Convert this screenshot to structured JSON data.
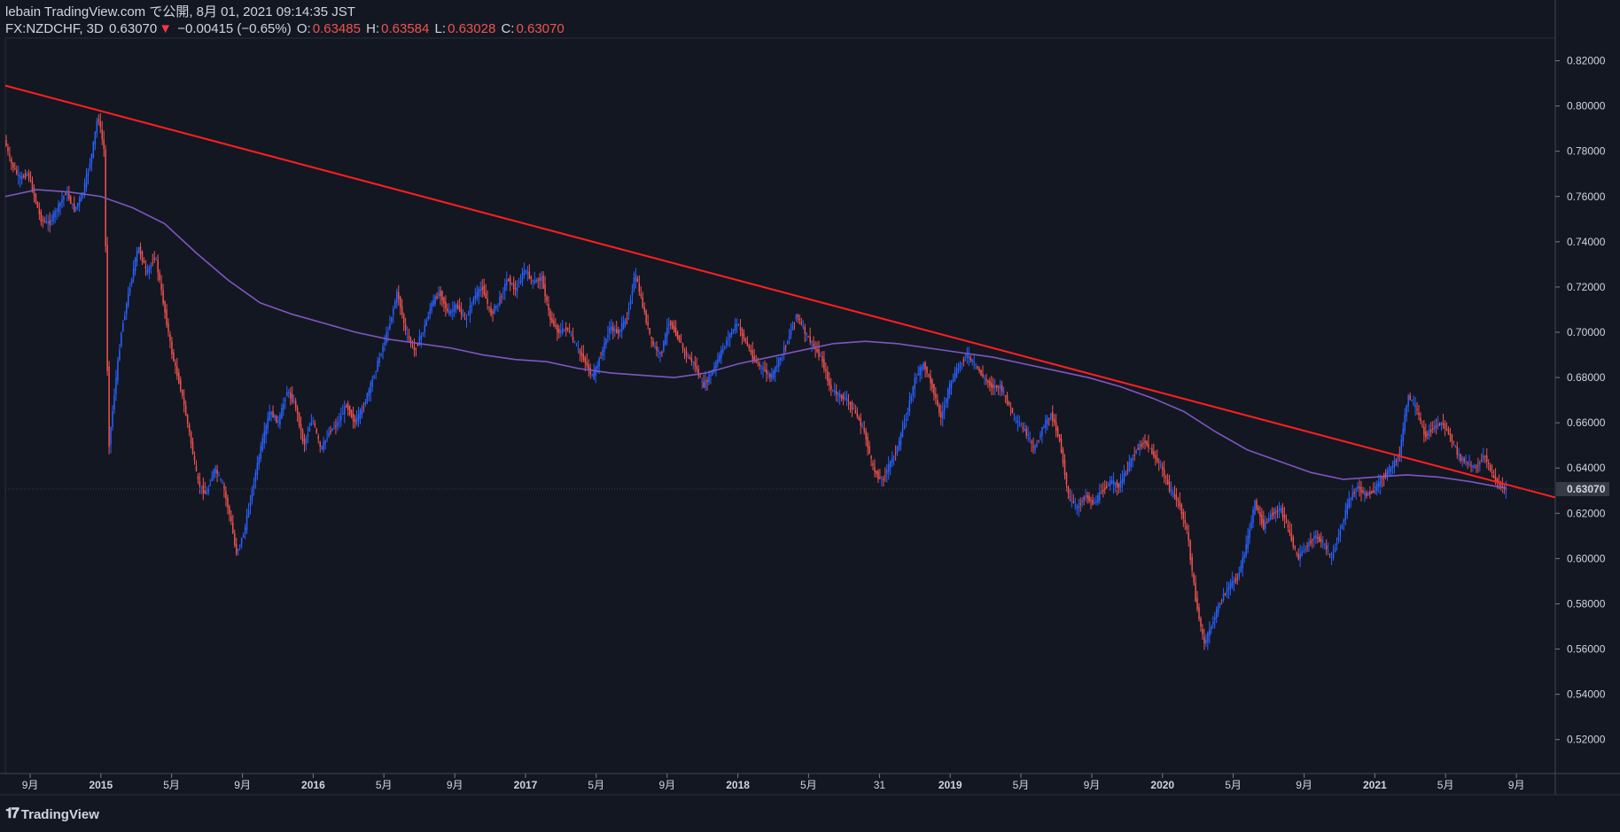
{
  "header": {
    "publisher": "lebain TradingView.com で公開, 8月 01, 2021 09:14:35 JST",
    "symbol": "FX:NZDCHF, 3D",
    "last": "0.63070",
    "change_arrow": "▼",
    "change": "−0.00415 (−0.65%)",
    "o_label": "O:",
    "o_value": "0.63485",
    "h_label": "H:",
    "h_value": "0.63584",
    "l_label": "L:",
    "l_value": "0.63028",
    "c_label": "C:",
    "c_value": "0.63070"
  },
  "logo": {
    "icon": "tradingview-logo-icon",
    "text": "TradingView"
  },
  "colors": {
    "background": "#131722",
    "up": "#2962ff",
    "down": "#ef5350",
    "ma": "#7e57c2",
    "trendline": "#ff1f1f",
    "axis_text": "#d1d4dc",
    "price_label_bg": "#363a45"
  },
  "chart_data": {
    "type": "candlestick",
    "title": "FX:NZDCHF, 3D",
    "y_axis": {
      "min": 0.505,
      "max": 0.83,
      "ticks": [
        "0.82000",
        "0.80000",
        "0.78000",
        "0.76000",
        "0.74000",
        "0.72000",
        "0.70000",
        "0.68000",
        "0.66000",
        "0.64000",
        "0.62000",
        "0.60000",
        "0.58000",
        "0.56000",
        "0.54000",
        "0.52000"
      ],
      "last_price_label": "0.63070",
      "last_price": 0.6307
    },
    "x_axis": {
      "start": 2014.55,
      "end": 2021.85,
      "ticks": [
        {
          "t": 2014.667,
          "label": "9月",
          "bold": false
        },
        {
          "t": 2015.0,
          "label": "2015",
          "bold": true
        },
        {
          "t": 2015.333,
          "label": "5月",
          "bold": false
        },
        {
          "t": 2015.667,
          "label": "9月",
          "bold": false
        },
        {
          "t": 2016.0,
          "label": "2016",
          "bold": true
        },
        {
          "t": 2016.333,
          "label": "5月",
          "bold": false
        },
        {
          "t": 2016.667,
          "label": "9月",
          "bold": false
        },
        {
          "t": 2017.0,
          "label": "2017",
          "bold": true
        },
        {
          "t": 2017.333,
          "label": "5月",
          "bold": false
        },
        {
          "t": 2017.667,
          "label": "9月",
          "bold": false
        },
        {
          "t": 2018.0,
          "label": "2018",
          "bold": true
        },
        {
          "t": 2018.333,
          "label": "5月",
          "bold": false
        },
        {
          "t": 2018.667,
          "label": "31",
          "bold": false
        },
        {
          "t": 2019.0,
          "label": "2019",
          "bold": true
        },
        {
          "t": 2019.333,
          "label": "5月",
          "bold": false
        },
        {
          "t": 2019.667,
          "label": "9月",
          "bold": false
        },
        {
          "t": 2020.0,
          "label": "2020",
          "bold": true
        },
        {
          "t": 2020.333,
          "label": "5月",
          "bold": false
        },
        {
          "t": 2020.667,
          "label": "9月",
          "bold": false
        },
        {
          "t": 2021.0,
          "label": "2021",
          "bold": true
        },
        {
          "t": 2021.333,
          "label": "5月",
          "bold": false
        },
        {
          "t": 2021.667,
          "label": "9月",
          "bold": false
        }
      ]
    },
    "price_path": [
      [
        2014.55,
        0.785
      ],
      [
        2014.58,
        0.775
      ],
      [
        2014.62,
        0.768
      ],
      [
        2014.66,
        0.77
      ],
      [
        2014.68,
        0.764
      ],
      [
        2014.72,
        0.75
      ],
      [
        2014.76,
        0.748
      ],
      [
        2014.8,
        0.755
      ],
      [
        2014.84,
        0.762
      ],
      [
        2014.88,
        0.754
      ],
      [
        2014.92,
        0.762
      ],
      [
        2014.96,
        0.778
      ],
      [
        2014.99,
        0.796
      ],
      [
        2015.02,
        0.78
      ],
      [
        2015.04,
        0.648
      ],
      [
        2015.07,
        0.675
      ],
      [
        2015.1,
        0.7
      ],
      [
        2015.14,
        0.72
      ],
      [
        2015.18,
        0.738
      ],
      [
        2015.22,
        0.726
      ],
      [
        2015.26,
        0.734
      ],
      [
        2015.3,
        0.712
      ],
      [
        2015.34,
        0.69
      ],
      [
        2015.38,
        0.675
      ],
      [
        2015.42,
        0.656
      ],
      [
        2015.46,
        0.634
      ],
      [
        2015.5,
        0.628
      ],
      [
        2015.54,
        0.64
      ],
      [
        2015.58,
        0.632
      ],
      [
        2015.62,
        0.615
      ],
      [
        2015.64,
        0.602
      ],
      [
        2015.68,
        0.612
      ],
      [
        2015.72,
        0.632
      ],
      [
        2015.76,
        0.65
      ],
      [
        2015.8,
        0.665
      ],
      [
        2015.84,
        0.66
      ],
      [
        2015.88,
        0.674
      ],
      [
        2015.92,
        0.668
      ],
      [
        2015.96,
        0.65
      ],
      [
        2016.0,
        0.662
      ],
      [
        2016.04,
        0.648
      ],
      [
        2016.08,
        0.656
      ],
      [
        2016.12,
        0.66
      ],
      [
        2016.16,
        0.668
      ],
      [
        2016.2,
        0.66
      ],
      [
        2016.24,
        0.667
      ],
      [
        2016.28,
        0.678
      ],
      [
        2016.32,
        0.69
      ],
      [
        2016.36,
        0.702
      ],
      [
        2016.4,
        0.718
      ],
      [
        2016.44,
        0.7
      ],
      [
        2016.48,
        0.692
      ],
      [
        2016.52,
        0.7
      ],
      [
        2016.56,
        0.712
      ],
      [
        2016.6,
        0.718
      ],
      [
        2016.64,
        0.708
      ],
      [
        2016.68,
        0.712
      ],
      [
        2016.72,
        0.705
      ],
      [
        2016.76,
        0.715
      ],
      [
        2016.8,
        0.72
      ],
      [
        2016.84,
        0.708
      ],
      [
        2016.88,
        0.714
      ],
      [
        2016.92,
        0.724
      ],
      [
        2016.96,
        0.718
      ],
      [
        2017.0,
        0.728
      ],
      [
        2017.04,
        0.722
      ],
      [
        2017.08,
        0.724
      ],
      [
        2017.12,
        0.706
      ],
      [
        2017.16,
        0.7
      ],
      [
        2017.2,
        0.702
      ],
      [
        2017.24,
        0.694
      ],
      [
        2017.28,
        0.688
      ],
      [
        2017.32,
        0.68
      ],
      [
        2017.36,
        0.69
      ],
      [
        2017.4,
        0.702
      ],
      [
        2017.44,
        0.7
      ],
      [
        2017.48,
        0.706
      ],
      [
        2017.52,
        0.726
      ],
      [
        2017.56,
        0.71
      ],
      [
        2017.6,
        0.695
      ],
      [
        2017.64,
        0.69
      ],
      [
        2017.68,
        0.705
      ],
      [
        2017.72,
        0.698
      ],
      [
        2017.76,
        0.69
      ],
      [
        2017.8,
        0.686
      ],
      [
        2017.84,
        0.676
      ],
      [
        2017.88,
        0.682
      ],
      [
        2017.92,
        0.69
      ],
      [
        2017.96,
        0.698
      ],
      [
        2018.0,
        0.704
      ],
      [
        2018.04,
        0.696
      ],
      [
        2018.08,
        0.688
      ],
      [
        2018.12,
        0.684
      ],
      [
        2018.16,
        0.68
      ],
      [
        2018.2,
        0.688
      ],
      [
        2018.24,
        0.697
      ],
      [
        2018.28,
        0.708
      ],
      [
        2018.32,
        0.7
      ],
      [
        2018.36,
        0.694
      ],
      [
        2018.4,
        0.688
      ],
      [
        2018.44,
        0.675
      ],
      [
        2018.48,
        0.672
      ],
      [
        2018.52,
        0.67
      ],
      [
        2018.56,
        0.664
      ],
      [
        2018.6,
        0.656
      ],
      [
        2018.64,
        0.64
      ],
      [
        2018.68,
        0.634
      ],
      [
        2018.72,
        0.642
      ],
      [
        2018.76,
        0.65
      ],
      [
        2018.8,
        0.664
      ],
      [
        2018.84,
        0.68
      ],
      [
        2018.88,
        0.686
      ],
      [
        2018.92,
        0.676
      ],
      [
        2018.96,
        0.662
      ],
      [
        2019.0,
        0.676
      ],
      [
        2019.04,
        0.684
      ],
      [
        2019.08,
        0.69
      ],
      [
        2019.12,
        0.686
      ],
      [
        2019.16,
        0.68
      ],
      [
        2019.2,
        0.676
      ],
      [
        2019.24,
        0.676
      ],
      [
        2019.28,
        0.668
      ],
      [
        2019.32,
        0.66
      ],
      [
        2019.36,
        0.656
      ],
      [
        2019.4,
        0.648
      ],
      [
        2019.44,
        0.658
      ],
      [
        2019.48,
        0.664
      ],
      [
        2019.52,
        0.652
      ],
      [
        2019.56,
        0.628
      ],
      [
        2019.6,
        0.622
      ],
      [
        2019.64,
        0.628
      ],
      [
        2019.68,
        0.624
      ],
      [
        2019.72,
        0.63
      ],
      [
        2019.76,
        0.634
      ],
      [
        2019.8,
        0.632
      ],
      [
        2019.84,
        0.64
      ],
      [
        2019.88,
        0.648
      ],
      [
        2019.92,
        0.652
      ],
      [
        2019.96,
        0.646
      ],
      [
        2020.0,
        0.64
      ],
      [
        2020.04,
        0.63
      ],
      [
        2020.08,
        0.625
      ],
      [
        2020.12,
        0.612
      ],
      [
        2020.16,
        0.582
      ],
      [
        2020.2,
        0.562
      ],
      [
        2020.24,
        0.572
      ],
      [
        2020.28,
        0.582
      ],
      [
        2020.32,
        0.588
      ],
      [
        2020.36,
        0.592
      ],
      [
        2020.4,
        0.606
      ],
      [
        2020.44,
        0.625
      ],
      [
        2020.48,
        0.614
      ],
      [
        2020.52,
        0.62
      ],
      [
        2020.56,
        0.622
      ],
      [
        2020.6,
        0.612
      ],
      [
        2020.64,
        0.6
      ],
      [
        2020.68,
        0.605
      ],
      [
        2020.72,
        0.61
      ],
      [
        2020.76,
        0.607
      ],
      [
        2020.8,
        0.6
      ],
      [
        2020.84,
        0.612
      ],
      [
        2020.88,
        0.625
      ],
      [
        2020.92,
        0.632
      ],
      [
        2020.96,
        0.628
      ],
      [
        2021.0,
        0.63
      ],
      [
        2021.04,
        0.636
      ],
      [
        2021.08,
        0.64
      ],
      [
        2021.12,
        0.646
      ],
      [
        2021.16,
        0.672
      ],
      [
        2021.2,
        0.666
      ],
      [
        2021.24,
        0.654
      ],
      [
        2021.28,
        0.658
      ],
      [
        2021.32,
        0.66
      ],
      [
        2021.36,
        0.654
      ],
      [
        2021.4,
        0.645
      ],
      [
        2021.44,
        0.642
      ],
      [
        2021.48,
        0.64
      ],
      [
        2021.52,
        0.646
      ],
      [
        2021.56,
        0.636
      ],
      [
        2021.6,
        0.632
      ],
      [
        2021.62,
        0.6307
      ]
    ],
    "moving_average": [
      [
        2014.55,
        0.76
      ],
      [
        2014.7,
        0.763
      ],
      [
        2014.85,
        0.762
      ],
      [
        2015.0,
        0.76
      ],
      [
        2015.15,
        0.755
      ],
      [
        2015.3,
        0.748
      ],
      [
        2015.45,
        0.735
      ],
      [
        2015.6,
        0.723
      ],
      [
        2015.75,
        0.713
      ],
      [
        2015.9,
        0.708
      ],
      [
        2016.05,
        0.704
      ],
      [
        2016.2,
        0.7
      ],
      [
        2016.35,
        0.697
      ],
      [
        2016.5,
        0.695
      ],
      [
        2016.65,
        0.693
      ],
      [
        2016.8,
        0.69
      ],
      [
        2016.95,
        0.688
      ],
      [
        2017.1,
        0.687
      ],
      [
        2017.25,
        0.684
      ],
      [
        2017.4,
        0.682
      ],
      [
        2017.55,
        0.681
      ],
      [
        2017.7,
        0.68
      ],
      [
        2017.85,
        0.682
      ],
      [
        2018.0,
        0.686
      ],
      [
        2018.15,
        0.689
      ],
      [
        2018.3,
        0.692
      ],
      [
        2018.45,
        0.695
      ],
      [
        2018.6,
        0.696
      ],
      [
        2018.75,
        0.695
      ],
      [
        2018.9,
        0.693
      ],
      [
        2019.05,
        0.691
      ],
      [
        2019.2,
        0.689
      ],
      [
        2019.35,
        0.686
      ],
      [
        2019.5,
        0.683
      ],
      [
        2019.65,
        0.68
      ],
      [
        2019.8,
        0.676
      ],
      [
        2019.95,
        0.671
      ],
      [
        2020.1,
        0.665
      ],
      [
        2020.25,
        0.656
      ],
      [
        2020.4,
        0.648
      ],
      [
        2020.55,
        0.643
      ],
      [
        2020.7,
        0.638
      ],
      [
        2020.85,
        0.635
      ],
      [
        2021.0,
        0.636
      ],
      [
        2021.15,
        0.637
      ],
      [
        2021.3,
        0.636
      ],
      [
        2021.45,
        0.634
      ],
      [
        2021.62,
        0.631
      ]
    ],
    "trendline": {
      "from": [
        2014.55,
        0.809
      ],
      "to": [
        2021.85,
        0.627
      ]
    }
  }
}
